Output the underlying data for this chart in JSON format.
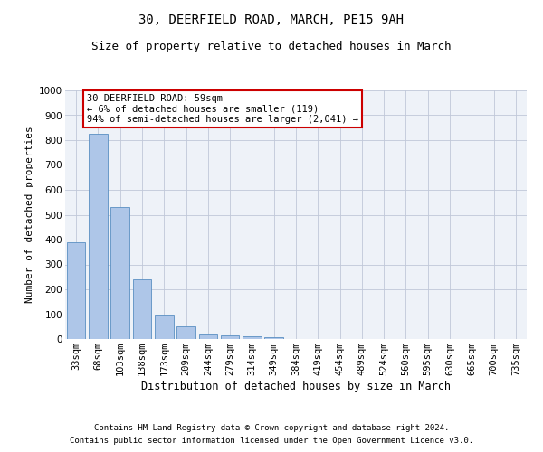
{
  "title1": "30, DEERFIELD ROAD, MARCH, PE15 9AH",
  "title2": "Size of property relative to detached houses in March",
  "xlabel": "Distribution of detached houses by size in March",
  "ylabel": "Number of detached properties",
  "categories": [
    "33sqm",
    "68sqm",
    "103sqm",
    "138sqm",
    "173sqm",
    "209sqm",
    "244sqm",
    "279sqm",
    "314sqm",
    "349sqm",
    "384sqm",
    "419sqm",
    "454sqm",
    "489sqm",
    "524sqm",
    "560sqm",
    "595sqm",
    "630sqm",
    "665sqm",
    "700sqm",
    "735sqm"
  ],
  "values": [
    390,
    825,
    530,
    240,
    95,
    50,
    20,
    15,
    10,
    8,
    0,
    0,
    0,
    0,
    0,
    0,
    0,
    0,
    0,
    0,
    0
  ],
  "bar_color": "#aec6e8",
  "bar_edge_color": "#5a8fc2",
  "annotation_text": "30 DEERFIELD ROAD: 59sqm\n← 6% of detached houses are smaller (119)\n94% of semi-detached houses are larger (2,041) →",
  "annotation_box_facecolor": "#ffffff",
  "annotation_box_edgecolor": "#cc0000",
  "ylim": [
    0,
    1000
  ],
  "yticks": [
    0,
    100,
    200,
    300,
    400,
    500,
    600,
    700,
    800,
    900,
    1000
  ],
  "grid_color": "#c0c8d8",
  "background_color": "#eef2f8",
  "footer1": "Contains HM Land Registry data © Crown copyright and database right 2024.",
  "footer2": "Contains public sector information licensed under the Open Government Licence v3.0.",
  "title1_fontsize": 10,
  "title2_fontsize": 9,
  "xlabel_fontsize": 8.5,
  "ylabel_fontsize": 8,
  "tick_fontsize": 7.5,
  "annotation_fontsize": 7.5,
  "footer_fontsize": 6.5
}
